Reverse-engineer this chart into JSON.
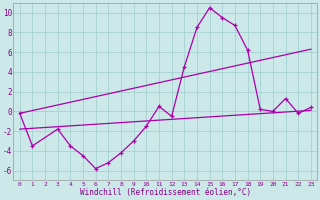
{
  "title": "",
  "xlabel": "Windchill (Refroidissement éolien,°C)",
  "background_color": "#cce8e8",
  "grid_color": "#aad4d4",
  "line_color": "#aa00aa",
  "xlim": [
    -0.5,
    23.5
  ],
  "ylim": [
    -7,
    11
  ],
  "yticks": [
    -6,
    -4,
    -2,
    0,
    2,
    4,
    6,
    8,
    10
  ],
  "xticks": [
    0,
    1,
    2,
    3,
    4,
    5,
    6,
    7,
    8,
    9,
    10,
    11,
    12,
    13,
    14,
    15,
    16,
    17,
    18,
    19,
    20,
    21,
    22,
    23
  ],
  "series1": [
    [
      0,
      -0.2
    ],
    [
      1,
      -3.5
    ],
    [
      3,
      -1.8
    ],
    [
      4,
      -3.5
    ],
    [
      5,
      -4.5
    ],
    [
      6,
      -5.8
    ],
    [
      7,
      -5.2
    ],
    [
      8,
      -4.2
    ],
    [
      9,
      -3.0
    ],
    [
      10,
      -1.5
    ],
    [
      11,
      0.5
    ],
    [
      12,
      -0.5
    ],
    [
      13,
      4.5
    ],
    [
      14,
      8.5
    ],
    [
      15,
      10.5
    ],
    [
      16,
      9.5
    ],
    [
      17,
      8.7
    ],
    [
      18,
      6.2
    ],
    [
      19,
      0.2
    ],
    [
      20,
      -0.0
    ],
    [
      21,
      1.3
    ],
    [
      22,
      -0.2
    ],
    [
      23,
      0.4
    ]
  ],
  "series2": [
    [
      0,
      -0.2
    ],
    [
      23,
      6.3
    ]
  ],
  "series3": [
    [
      0,
      -1.8
    ],
    [
      23,
      0.1
    ]
  ]
}
